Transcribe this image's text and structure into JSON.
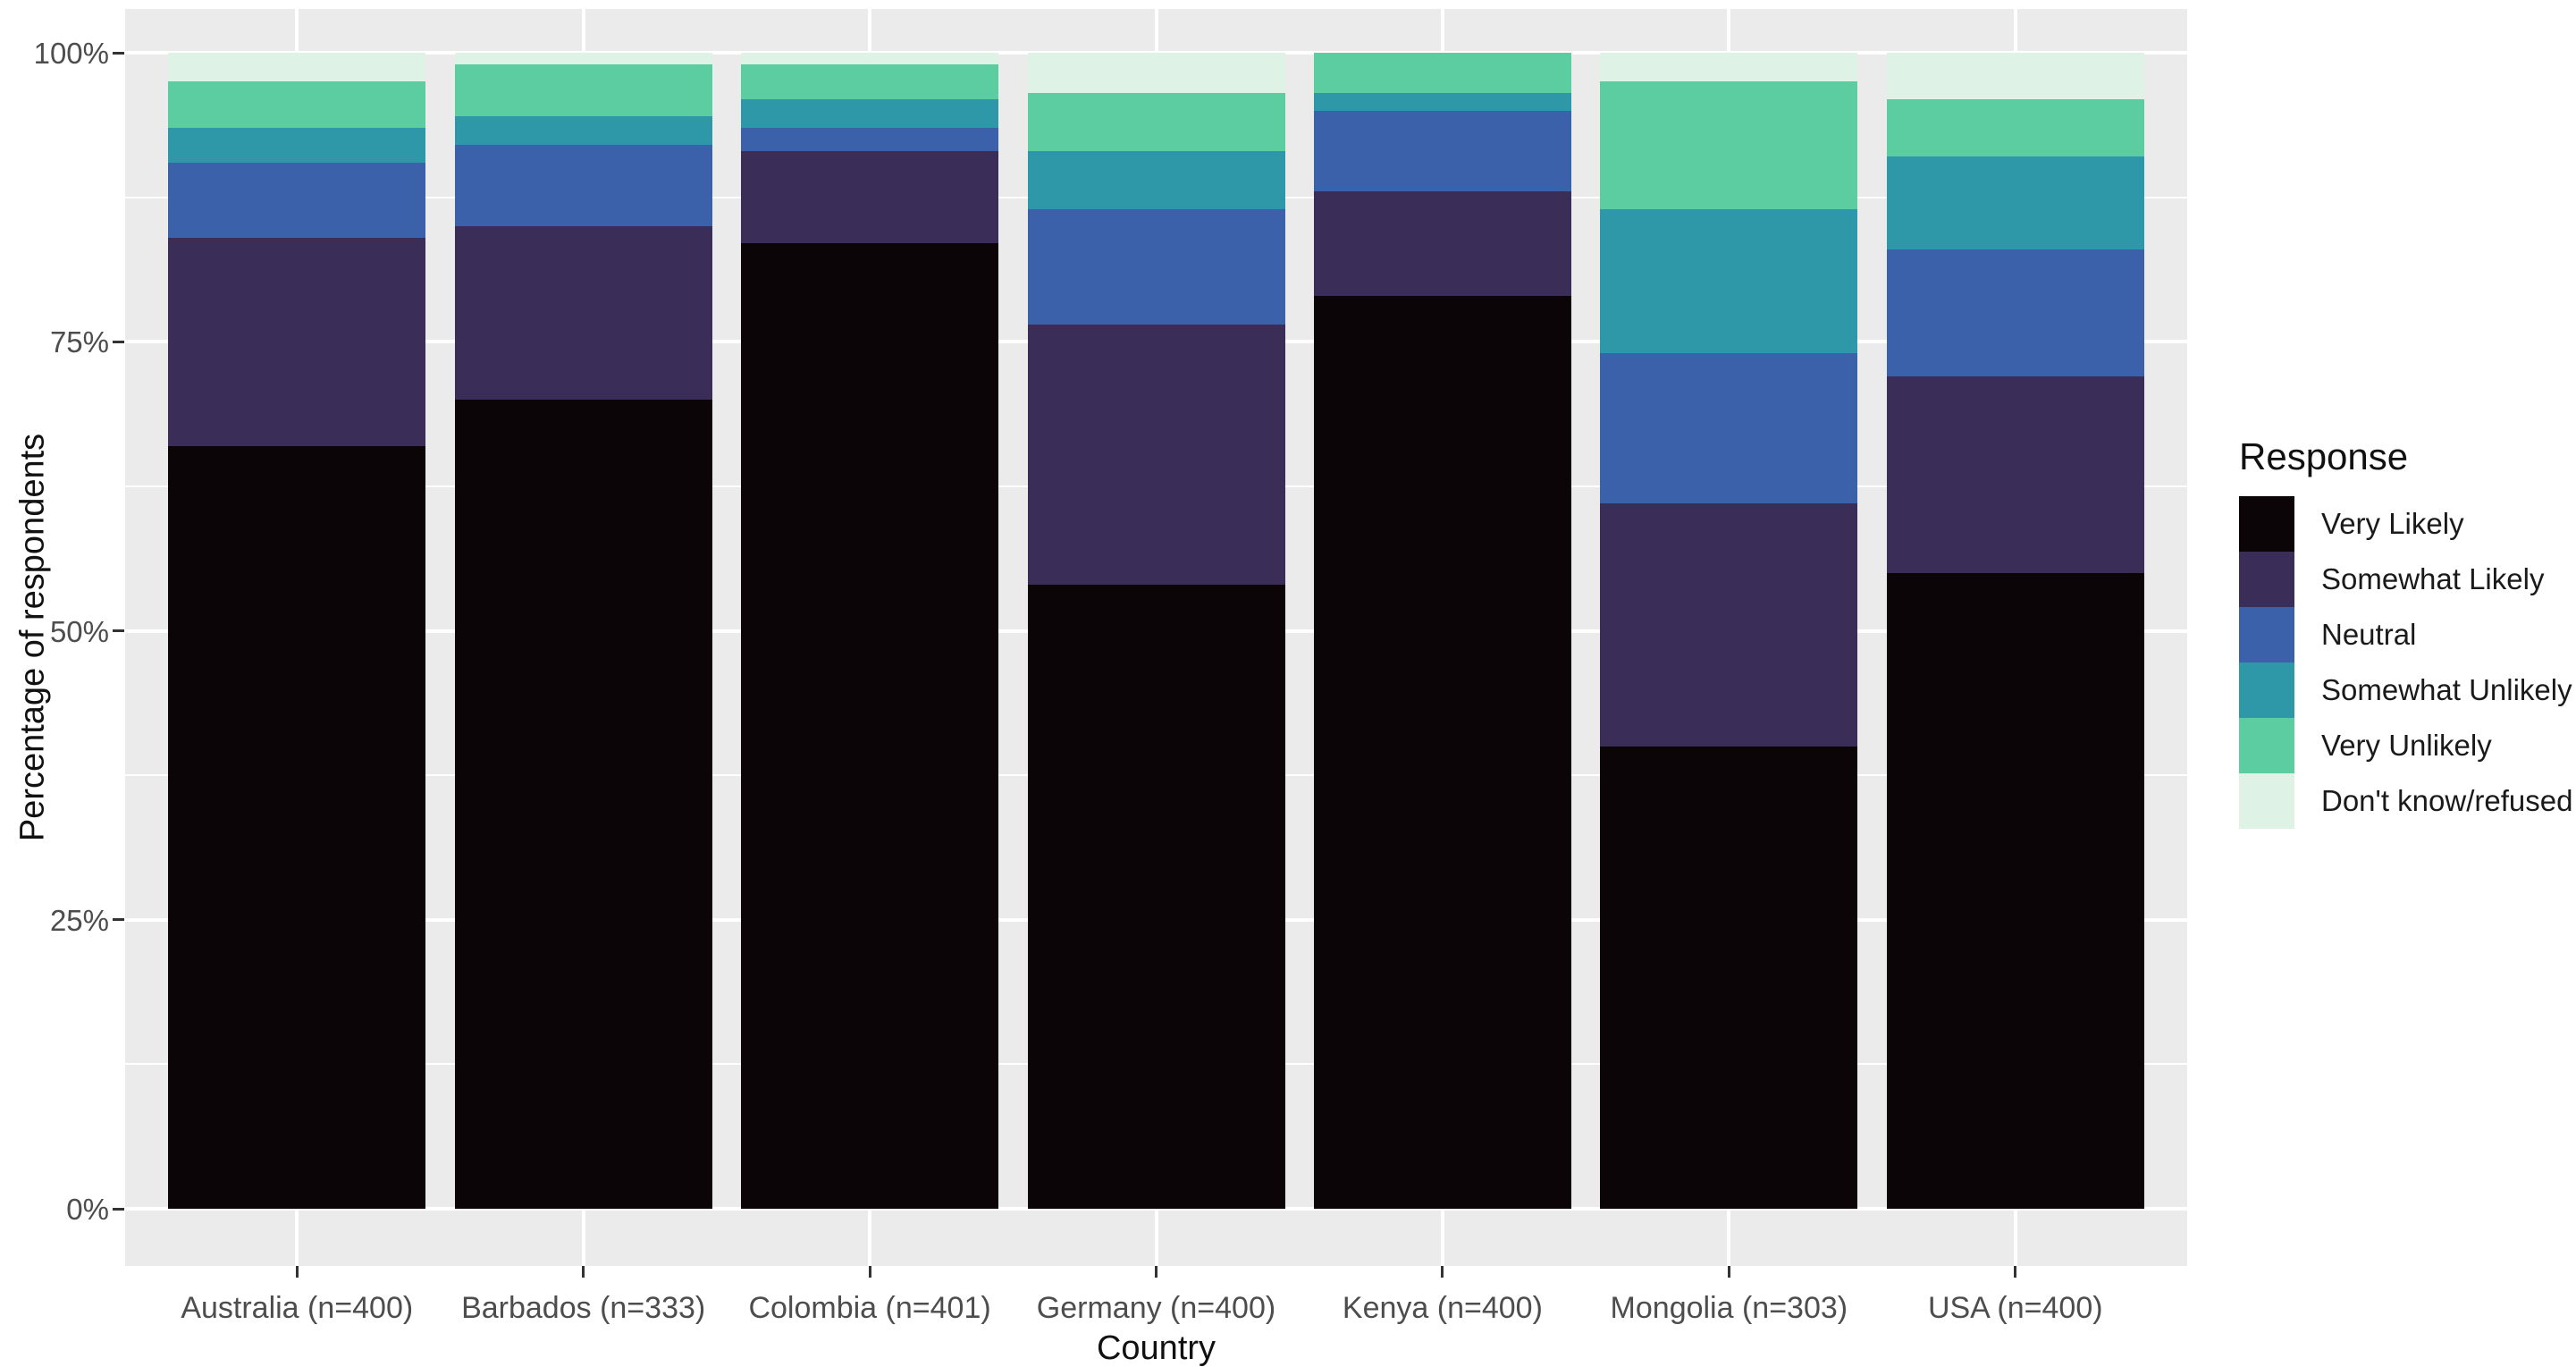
{
  "figure": {
    "y_axis_title": "Percentage of respondents",
    "x_axis_title": "Country",
    "legend_title": "Response"
  },
  "chart_data": {
    "type": "bar",
    "subtype": "stacked-percent-fill",
    "orientation": "vertical",
    "title": "",
    "xlabel": "Country",
    "ylabel": "Percentage of respondents",
    "ylim": [
      0,
      100
    ],
    "grid": "on",
    "panel_background": "#EBEBEB",
    "gridline_color": "#FFFFFF",
    "tick_label_color": "#4D4D4D",
    "legend_position": "right",
    "legend_title": "Response",
    "categories": [
      "Australia (n=400)",
      "Barbados (n=333)",
      "Colombia (n=401)",
      "Germany (n=400)",
      "Kenya (n=400)",
      "Mongolia (n=303)",
      "USA (n=400)"
    ],
    "y_ticks": [
      {
        "label": "0%",
        "value": 0
      },
      {
        "label": "25%",
        "value": 25
      },
      {
        "label": "50%",
        "value": 50
      },
      {
        "label": "75%",
        "value": 75
      },
      {
        "label": "100%",
        "value": 100
      }
    ],
    "y_minor_gridlines": [
      12.5,
      37.5,
      62.5,
      87.5
    ],
    "series": [
      {
        "name": "Very Likely",
        "color": "#0C0508",
        "values": [
          66,
          70,
          83.5,
          54,
          79,
          40,
          55
        ]
      },
      {
        "name": "Somewhat Likely",
        "color": "#3A2D58",
        "values": [
          18,
          15,
          8,
          22.5,
          9,
          21,
          17
        ]
      },
      {
        "name": "Neutral",
        "color": "#3B61AB",
        "values": [
          6.5,
          7,
          2,
          10,
          7,
          13,
          11
        ]
      },
      {
        "name": "Somewhat Unlikely",
        "color": "#2F98A8",
        "values": [
          3,
          2.5,
          2.5,
          5,
          1.5,
          12.5,
          8
        ]
      },
      {
        "name": "Very Unlikely",
        "color": "#5BCDA0",
        "values": [
          4,
          4.5,
          3,
          5,
          3.5,
          11,
          5
        ]
      },
      {
        "name": "Don't know/refused",
        "color": "#DEF3E5",
        "values": [
          2.5,
          1,
          1,
          3.5,
          0,
          2.5,
          4
        ]
      }
    ]
  }
}
